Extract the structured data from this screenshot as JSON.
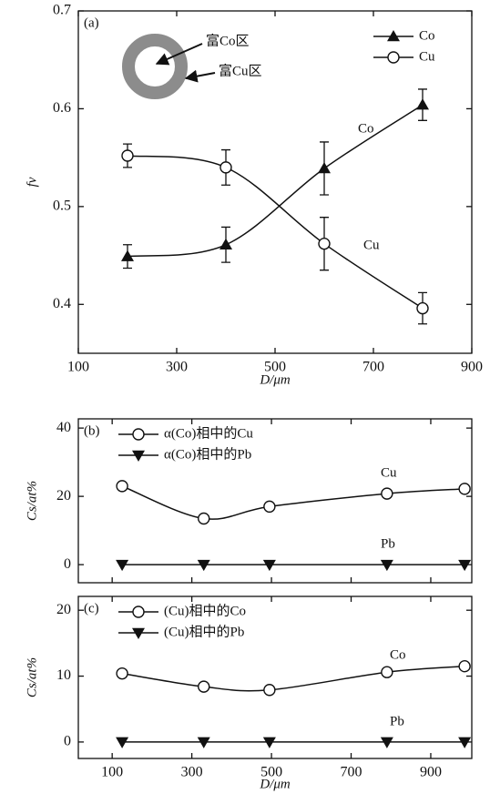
{
  "chart_data": [
    {
      "type": "line",
      "panel_label": "(a)",
      "x_label": "D/μm",
      "y_label": "fv",
      "x": [
        200,
        400,
        600,
        800
      ],
      "xlim": [
        100,
        900
      ],
      "xticks": [
        100,
        300,
        500,
        700,
        900
      ],
      "show_xtick_labels": true,
      "ylim": [
        0.35,
        0.7
      ],
      "yticks": [
        0.4,
        0.5,
        0.6,
        0.7
      ],
      "legend": "upper right",
      "series": [
        {
          "name": "Co",
          "marker": "triangle-up",
          "color": "#111111",
          "values": [
            0.449,
            0.461,
            0.539,
            0.604
          ],
          "errors": [
            0.012,
            0.018,
            0.027,
            0.016
          ]
        },
        {
          "name": "Cu",
          "marker": "circle",
          "color": "#111111",
          "values": [
            0.552,
            0.54,
            0.462,
            0.396
          ],
          "errors": [
            0.012,
            0.018,
            0.027,
            0.016
          ]
        }
      ],
      "annotations": [
        "Co",
        "Cu"
      ],
      "inset": {
        "inner_label": "富Co区",
        "outer_label": "富Cu区"
      }
    },
    {
      "type": "line",
      "panel_label": "(b)",
      "y_label": "Cs/at%",
      "x": [
        125,
        330,
        495,
        790,
        985
      ],
      "xlim": [
        15,
        1003
      ],
      "xticks": [
        100,
        300,
        500,
        700,
        900
      ],
      "show_xtick_labels": false,
      "ylim": [
        -5.3,
        42.7
      ],
      "yticks": [
        0,
        20,
        40
      ],
      "legend": "upper left",
      "series": [
        {
          "name": "α(Co)相中的Cu",
          "marker": "circle",
          "color": "#111111",
          "values": [
            23,
            13.5,
            17,
            20.8,
            22.2
          ]
        },
        {
          "name": "α(Co)相中的Pb",
          "marker": "triangle-down",
          "color": "#111111",
          "values": [
            0,
            0,
            0,
            0,
            0
          ]
        }
      ],
      "annotations": [
        "Cu",
        "Pb"
      ]
    },
    {
      "type": "line",
      "panel_label": "(c)",
      "x_label": "D/μm",
      "y_label": "Cs/at%",
      "x": [
        125,
        330,
        495,
        790,
        985
      ],
      "xlim": [
        15,
        1003
      ],
      "xticks": [
        100,
        300,
        500,
        700,
        900
      ],
      "show_xtick_labels": true,
      "ylim": [
        -2.5,
        22.1
      ],
      "yticks": [
        0,
        10,
        20
      ],
      "legend": "upper left",
      "series": [
        {
          "name": "(Cu)相中的Co",
          "marker": "circle",
          "color": "#111111",
          "values": [
            10.4,
            8.4,
            7.9,
            10.6,
            11.5
          ]
        },
        {
          "name": "(Cu)相中的Pb",
          "marker": "triangle-down",
          "color": "#111111",
          "values": [
            0,
            0,
            0,
            0,
            0
          ]
        }
      ],
      "annotations": [
        "Co",
        "Pb"
      ]
    }
  ]
}
